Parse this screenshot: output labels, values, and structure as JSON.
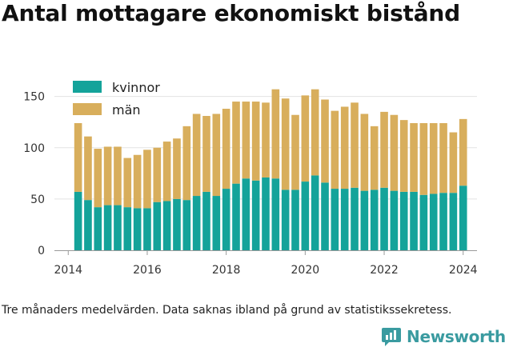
{
  "title": "Antal mottagare ekonomiskt bistånd",
  "note": "Tre månaders medelvärden. Data saknas ibland på grund av statistikssekretess.",
  "brand": {
    "name": "Newsworthy",
    "icon": "newsworthy-logo-icon",
    "color": "#3a9ba0"
  },
  "chart_data": {
    "type": "bar",
    "stacked": true,
    "x_start": "2014-04",
    "x_step_months": 3,
    "series": [
      {
        "name": "kvinnor",
        "color": "#14a39a",
        "values": [
          57,
          49,
          42,
          44,
          44,
          42,
          41,
          41,
          47,
          48,
          50,
          49,
          53,
          57,
          53,
          60,
          65,
          70,
          68,
          71,
          70,
          59,
          59,
          67,
          73,
          66,
          60,
          60,
          61,
          58,
          59,
          61,
          58,
          57,
          57,
          54,
          55,
          56,
          56,
          63
        ]
      },
      {
        "name": "män",
        "color": "#d8ae5c",
        "values": [
          67,
          62,
          57,
          57,
          57,
          48,
          52,
          57,
          53,
          58,
          59,
          72,
          80,
          74,
          80,
          78,
          80,
          75,
          77,
          73,
          87,
          89,
          73,
          84,
          84,
          81,
          76,
          80,
          83,
          75,
          62,
          74,
          74,
          70,
          67,
          70,
          69,
          68,
          59,
          65
        ]
      }
    ],
    "xlim": [
      2013.65,
      2024.35
    ],
    "x_ticks": [
      "2014",
      "2016",
      "2018",
      "2020",
      "2022",
      "2024"
    ],
    "ylim": [
      0,
      170
    ],
    "y_ticks": [
      "0",
      "50",
      "100",
      "150"
    ],
    "grid": "horizontal",
    "legend_position": "top-left"
  }
}
